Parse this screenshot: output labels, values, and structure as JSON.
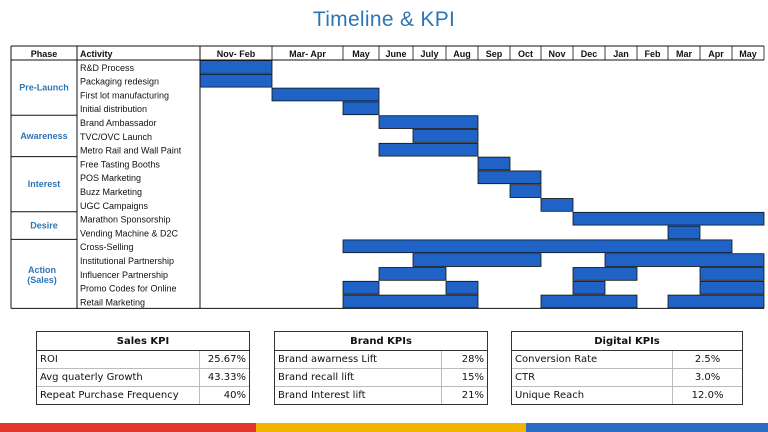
{
  "title": "Timeline & KPI",
  "headers": {
    "phase": "Phase",
    "activity": "Activity"
  },
  "months": [
    "Nov- Feb",
    "Mar- Apr",
    "May",
    "June",
    "July",
    "Aug",
    "Sep",
    "Oct",
    "Nov",
    "Dec",
    "Jan",
    "Feb",
    "Mar",
    "Apr",
    "May"
  ],
  "phases": [
    {
      "name": "Pre-Launch",
      "rows": 4
    },
    {
      "name": "Awareness",
      "rows": 3
    },
    {
      "name": "Interest",
      "rows": 4
    },
    {
      "name": "Desire",
      "rows": 2
    },
    {
      "name": "Action (Sales)",
      "rows": 5
    }
  ],
  "activities": [
    {
      "name": "R&D Process",
      "bars": [
        [
          0,
          1
        ]
      ]
    },
    {
      "name": "Packaging redesign",
      "bars": [
        [
          0,
          1
        ]
      ]
    },
    {
      "name": "First lot manufacturing",
      "bars": [
        [
          1,
          3
        ]
      ]
    },
    {
      "name": "Initial distribution",
      "bars": [
        [
          2,
          3
        ]
      ]
    },
    {
      "name": "Brand Ambassador",
      "bars": [
        [
          3,
          6
        ]
      ]
    },
    {
      "name": "TVC/OVC Launch",
      "bars": [
        [
          4,
          6
        ]
      ]
    },
    {
      "name": "Metro Rail and Wall Paint",
      "bars": [
        [
          3,
          6
        ]
      ]
    },
    {
      "name": "Free Tasting Booths",
      "bars": [
        [
          6,
          7
        ]
      ]
    },
    {
      "name": "POS Marketing",
      "bars": [
        [
          6,
          8
        ]
      ]
    },
    {
      "name": "Buzz Marketing",
      "bars": [
        [
          7,
          8
        ]
      ]
    },
    {
      "name": "UGC Campaigns",
      "bars": [
        [
          8,
          9
        ]
      ]
    },
    {
      "name": "Marathon Sponsorship",
      "bars": [
        [
          9,
          15
        ]
      ]
    },
    {
      "name": "Vending Machine & D2C",
      "bars": [
        [
          12,
          13
        ]
      ]
    },
    {
      "name": "Cross-Selling",
      "bars": [
        [
          2,
          14
        ]
      ]
    },
    {
      "name": "Institutional Partnership",
      "bars": [
        [
          4,
          8
        ],
        [
          10,
          15
        ]
      ]
    },
    {
      "name": "Influencer Partnership",
      "bars": [
        [
          3,
          5
        ],
        [
          9,
          11
        ],
        [
          13,
          15
        ]
      ]
    },
    {
      "name": "Promo Codes for Online",
      "bars": [
        [
          2,
          3
        ],
        [
          5,
          6
        ],
        [
          9,
          10
        ],
        [
          13,
          15
        ]
      ]
    },
    {
      "name": "Retail Marketing",
      "bars": [
        [
          2,
          6
        ],
        [
          8,
          11
        ],
        [
          12,
          15
        ]
      ]
    }
  ],
  "colors": {
    "bar": "#1f63c6",
    "bar_border": "#111111",
    "phase_text": "#2e75b6",
    "title": "#2e75b6"
  },
  "kpi_tables": [
    {
      "title": "Sales KPI",
      "rows": [
        [
          "ROI",
          "25.67%"
        ],
        [
          "Avg quaterly Growth",
          "43.33%"
        ],
        [
          "Repeat Purchase Frequency",
          "40%"
        ]
      ]
    },
    {
      "title": "Brand KPIs",
      "rows": [
        [
          "Brand awarness Lift",
          "28%"
        ],
        [
          "Brand recall lift",
          "15%"
        ],
        [
          "Brand Interest lift",
          "21%"
        ]
      ]
    },
    {
      "title": "Digital KPIs",
      "rows": [
        [
          "Conversion Rate",
          "2.5%"
        ],
        [
          "CTR",
          "3.0%"
        ],
        [
          "Unique Reach",
          "12.0%"
        ]
      ]
    }
  ],
  "footer_colors": [
    "#e0362c",
    "#f4b400",
    "#2b6cc4"
  ]
}
